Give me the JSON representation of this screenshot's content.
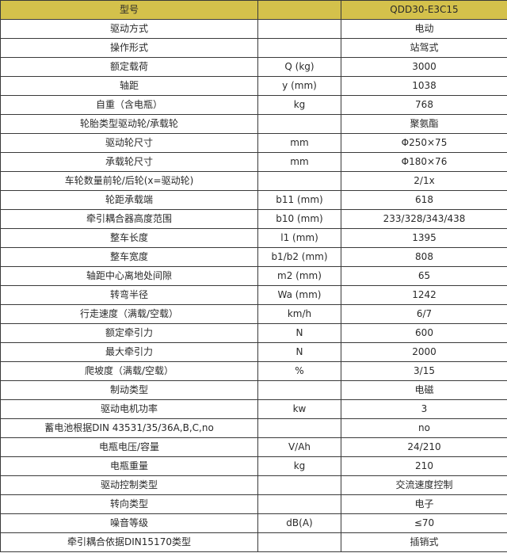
{
  "header": {
    "param": "型号",
    "unit": "",
    "value": "QDD30-E3C15"
  },
  "header_color": "#d4c14b",
  "rows": [
    {
      "param": "驱动方式",
      "unit": "",
      "value": "电动"
    },
    {
      "param": "操作形式",
      "unit": "",
      "value": "站驾式"
    },
    {
      "param": "额定载荷",
      "unit": "Q (kg)",
      "value": "3000"
    },
    {
      "param": "轴距",
      "unit": "y (mm)",
      "value": "1038"
    },
    {
      "param": "自重（含电瓶）",
      "unit": "kg",
      "value": "768"
    },
    {
      "param": "轮胎类型驱动轮/承载轮",
      "unit": "",
      "value": "聚氨酯"
    },
    {
      "param": "驱动轮尺寸",
      "unit": "mm",
      "value": "Φ250×75"
    },
    {
      "param": "承载轮尺寸",
      "unit": "mm",
      "value": "Φ180×76"
    },
    {
      "param": "车轮数量前轮/后轮(x=驱动轮)",
      "unit": "",
      "value": "2/1x"
    },
    {
      "param": "轮距承载端",
      "unit": "b11 (mm)",
      "value": "618"
    },
    {
      "param": "牵引耦合器高度范围",
      "unit": "b10 (mm)",
      "value": "233/328/343/438"
    },
    {
      "param": "整车长度",
      "unit": "l1 (mm)",
      "value": "1395"
    },
    {
      "param": "整车宽度",
      "unit": "b1/b2 (mm)",
      "value": "808"
    },
    {
      "param": "轴距中心离地处间隙",
      "unit": "m2 (mm)",
      "value": "65"
    },
    {
      "param": "转弯半径",
      "unit": "Wa (mm)",
      "value": "1242"
    },
    {
      "param": "行走速度（满载/空载）",
      "unit": "km/h",
      "value": "6/7"
    },
    {
      "param": "额定牵引力",
      "unit": "N",
      "value": "600"
    },
    {
      "param": "最大牵引力",
      "unit": "N",
      "value": "2000"
    },
    {
      "param": "爬坡度（满载/空载）",
      "unit": "%",
      "value": "3/15"
    },
    {
      "param": "制动类型",
      "unit": "",
      "value": "电磁"
    },
    {
      "param": "驱动电机功率",
      "unit": "kw",
      "value": "3"
    },
    {
      "param": "蓄电池根据DIN 43531/35/36A,B,C,no",
      "unit": "",
      "value": "no"
    },
    {
      "param": "电瓶电压/容量",
      "unit": "V/Ah",
      "value": "24/210"
    },
    {
      "param": "电瓶重量",
      "unit": "kg",
      "value": "210"
    },
    {
      "param": "驱动控制类型",
      "unit": "",
      "value": "交流速度控制"
    },
    {
      "param": "转向类型",
      "unit": "",
      "value": "电子"
    },
    {
      "param": "噪音等级",
      "unit": "dB(A)",
      "value": "≤70"
    },
    {
      "param": "牵引耦合依据DIN15170类型",
      "unit": "",
      "value": "插销式"
    }
  ]
}
